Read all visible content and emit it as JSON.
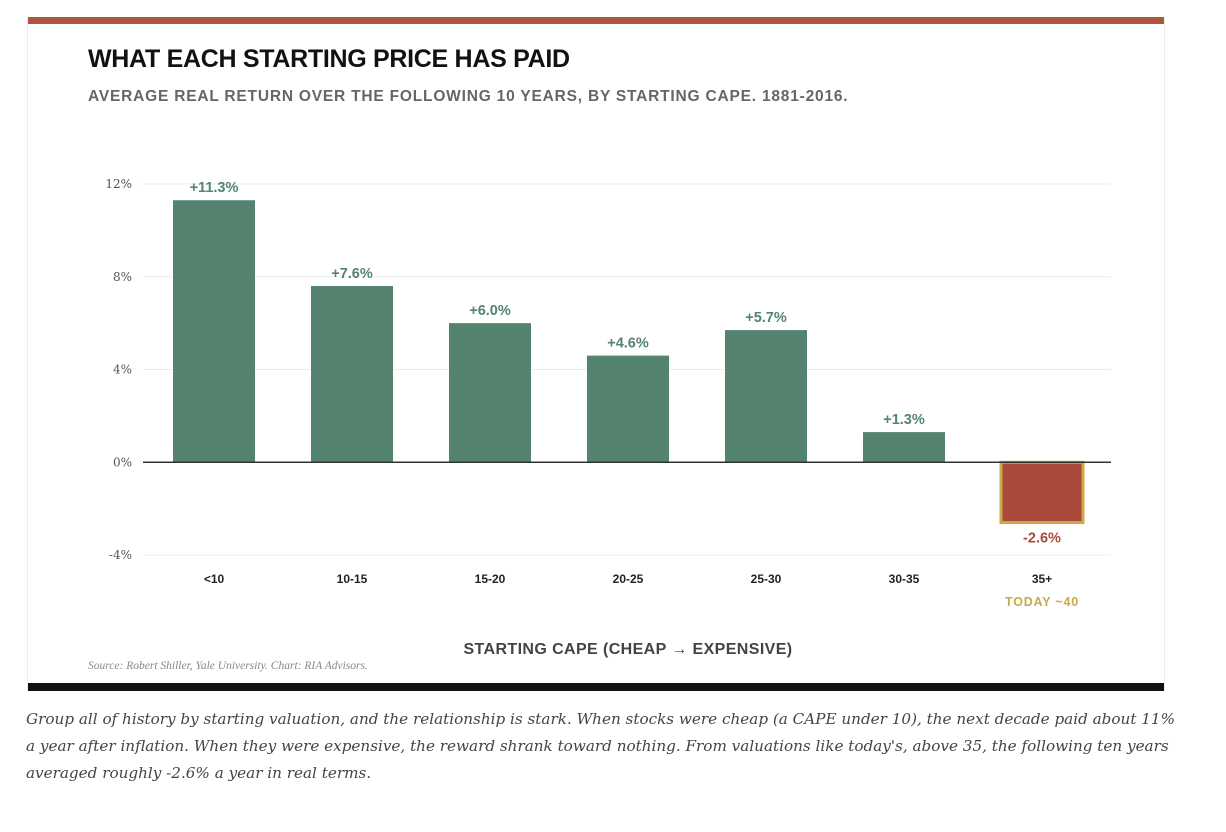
{
  "header": {
    "title": "WHAT EACH STARTING PRICE HAS PAID",
    "subtitle": "AVERAGE REAL RETURN OVER THE FOLLOWING 10 YEARS, BY STARTING CAPE. 1881-2016."
  },
  "colors": {
    "positive": "#548470",
    "negative": "#a8493a",
    "highlight": "#c9a94a",
    "rule_top": "#b0543d",
    "rule_bottom": "#111111"
  },
  "chart_data": {
    "type": "bar",
    "categories": [
      "<10",
      "10-15",
      "15-20",
      "20-25",
      "25-30",
      "30-35",
      "35+"
    ],
    "values": [
      11.3,
      7.6,
      6.0,
      4.6,
      5.7,
      1.3,
      -2.6
    ],
    "data_labels": [
      "+11.3%",
      "+7.6%",
      "+6.0%",
      "+4.6%",
      "+5.7%",
      "+1.3%",
      "-2.6%"
    ],
    "highlight_index": 6,
    "highlight_note": "TODAY ~40",
    "xlabel": "STARTING CAPE (CHEAP → EXPENSIVE)",
    "ylabel": "",
    "ylim": [
      -4,
      12
    ],
    "yticks": [
      12,
      8,
      4,
      0,
      -4
    ],
    "ytick_labels": [
      "12%",
      "8%",
      "4%",
      "0%",
      "-4%"
    ],
    "grid": true
  },
  "footer": {
    "source": "Source: Robert Shiller, Yale University. Chart: RIA Advisors."
  },
  "caption": "Group all of history by starting valuation, and the relationship is stark. When stocks were cheap (a CAPE under 10), the next decade paid about 11% a year after inflation. When they were expensive, the reward shrank toward nothing. From valuations like today's, above 35, the following ten years averaged roughly -2.6% a year in real terms."
}
